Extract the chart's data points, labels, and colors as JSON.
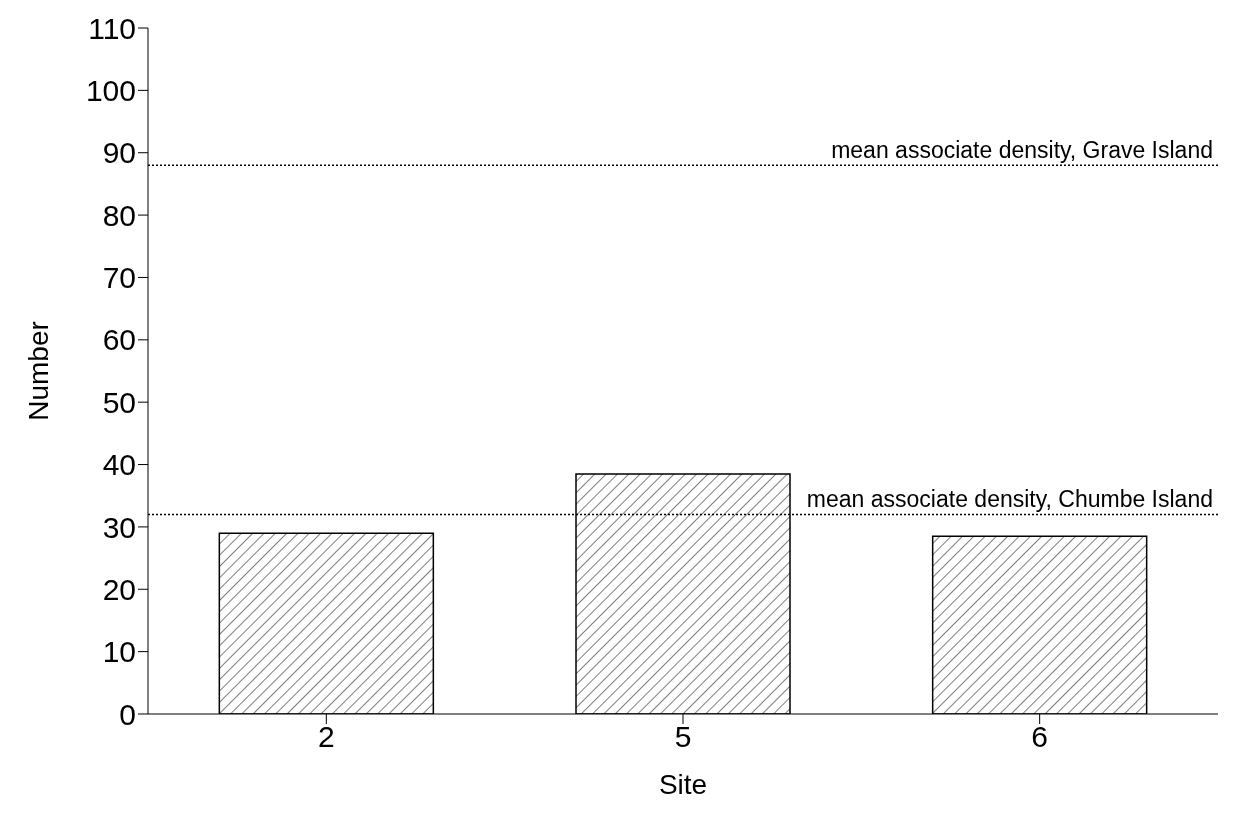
{
  "chart_data": {
    "type": "bar",
    "xlabel": "Site",
    "ylabel": "Number",
    "categories": [
      "2",
      "5",
      "6"
    ],
    "values": [
      29,
      38.5,
      28.5
    ],
    "color": "#000000",
    "ylim": [
      0,
      110
    ],
    "yticks": [
      0,
      10,
      20,
      30,
      40,
      50,
      60,
      70,
      80,
      90,
      100,
      110
    ],
    "grid": false,
    "legend": false,
    "ref_lines": [
      {
        "axis": "y",
        "value": 88,
        "label": "mean associate density, Grave Island",
        "color": "#000000",
        "line_style": "dotted"
      },
      {
        "axis": "y",
        "value": 32,
        "label": "mean associate density, Chumbe Island",
        "color": "#000000",
        "line_style": "dotted"
      }
    ]
  }
}
